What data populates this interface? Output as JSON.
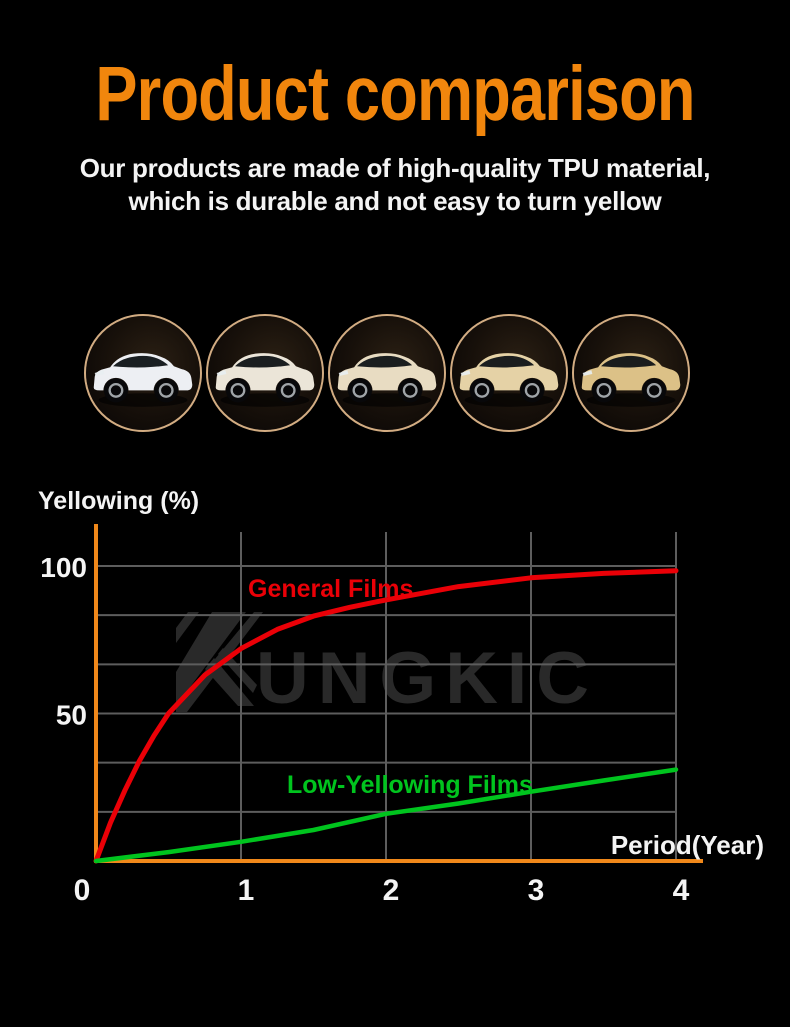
{
  "page": {
    "title": "Product comparison",
    "subtitle_line1": "Our products are made of high-quality TPU material,",
    "subtitle_line2": "which is durable and not easy to turn yellow",
    "title_color": "#F1860D",
    "background_color": "#000000"
  },
  "cars": {
    "caption": "car yellowing stages from new to yellowed",
    "ring_color": "#D2AC82",
    "stages": [
      {
        "name": "car-photo-stage-1",
        "tint": "#EDEFF3"
      },
      {
        "name": "car-photo-stage-2",
        "tint": "#EBE5D8"
      },
      {
        "name": "car-photo-stage-3",
        "tint": "#E8DCC2"
      },
      {
        "name": "car-photo-stage-4",
        "tint": "#E5D2A6"
      },
      {
        "name": "car-photo-stage-5",
        "tint": "#DCC187"
      }
    ]
  },
  "watermark": {
    "brand": "KUNGKIC",
    "letters_after_logo": "UNGKIC",
    "color": "#2D2D2D"
  },
  "chart_data": {
    "type": "line",
    "title": "",
    "ylabel": "Yellowing (%)",
    "xlabel": "Period(Year)",
    "xlim": [
      0,
      4
    ],
    "ylim": [
      0,
      100
    ],
    "grid": true,
    "y_gridline_divisions": 6,
    "legend_position": "labels-on-lines",
    "axis_color": "#F0881A",
    "gridline_color": "#5D5D5D",
    "xticks": [
      {
        "value": 0,
        "label": "0"
      },
      {
        "value": 1,
        "label": "1"
      },
      {
        "value": 2,
        "label": "2"
      },
      {
        "value": 3,
        "label": "3"
      },
      {
        "value": 4,
        "label": "4"
      }
    ],
    "yticks": [
      {
        "value": 100,
        "label": "100"
      },
      {
        "value": 50,
        "label": "50"
      }
    ],
    "series": [
      {
        "name": "General Films",
        "color": "#EA0007",
        "x": [
          0,
          0.1,
          0.2,
          0.3,
          0.4,
          0.5,
          0.75,
          1,
          1.25,
          1.5,
          1.75,
          2,
          2.5,
          3,
          3.5,
          4
        ],
        "values": [
          0,
          13,
          24,
          34,
          42.5,
          50,
          63,
          72,
          78.5,
          83,
          86,
          88.5,
          93,
          96,
          97.5,
          98.4
        ]
      },
      {
        "name": "Low-Yellowing Films",
        "color": "#00C41E",
        "x": [
          0,
          0.5,
          1,
          1.5,
          2,
          2.5,
          3,
          3.5,
          4
        ],
        "values": [
          0,
          3,
          6.5,
          10.5,
          16,
          19.5,
          23.5,
          27.3,
          31
        ]
      }
    ]
  }
}
